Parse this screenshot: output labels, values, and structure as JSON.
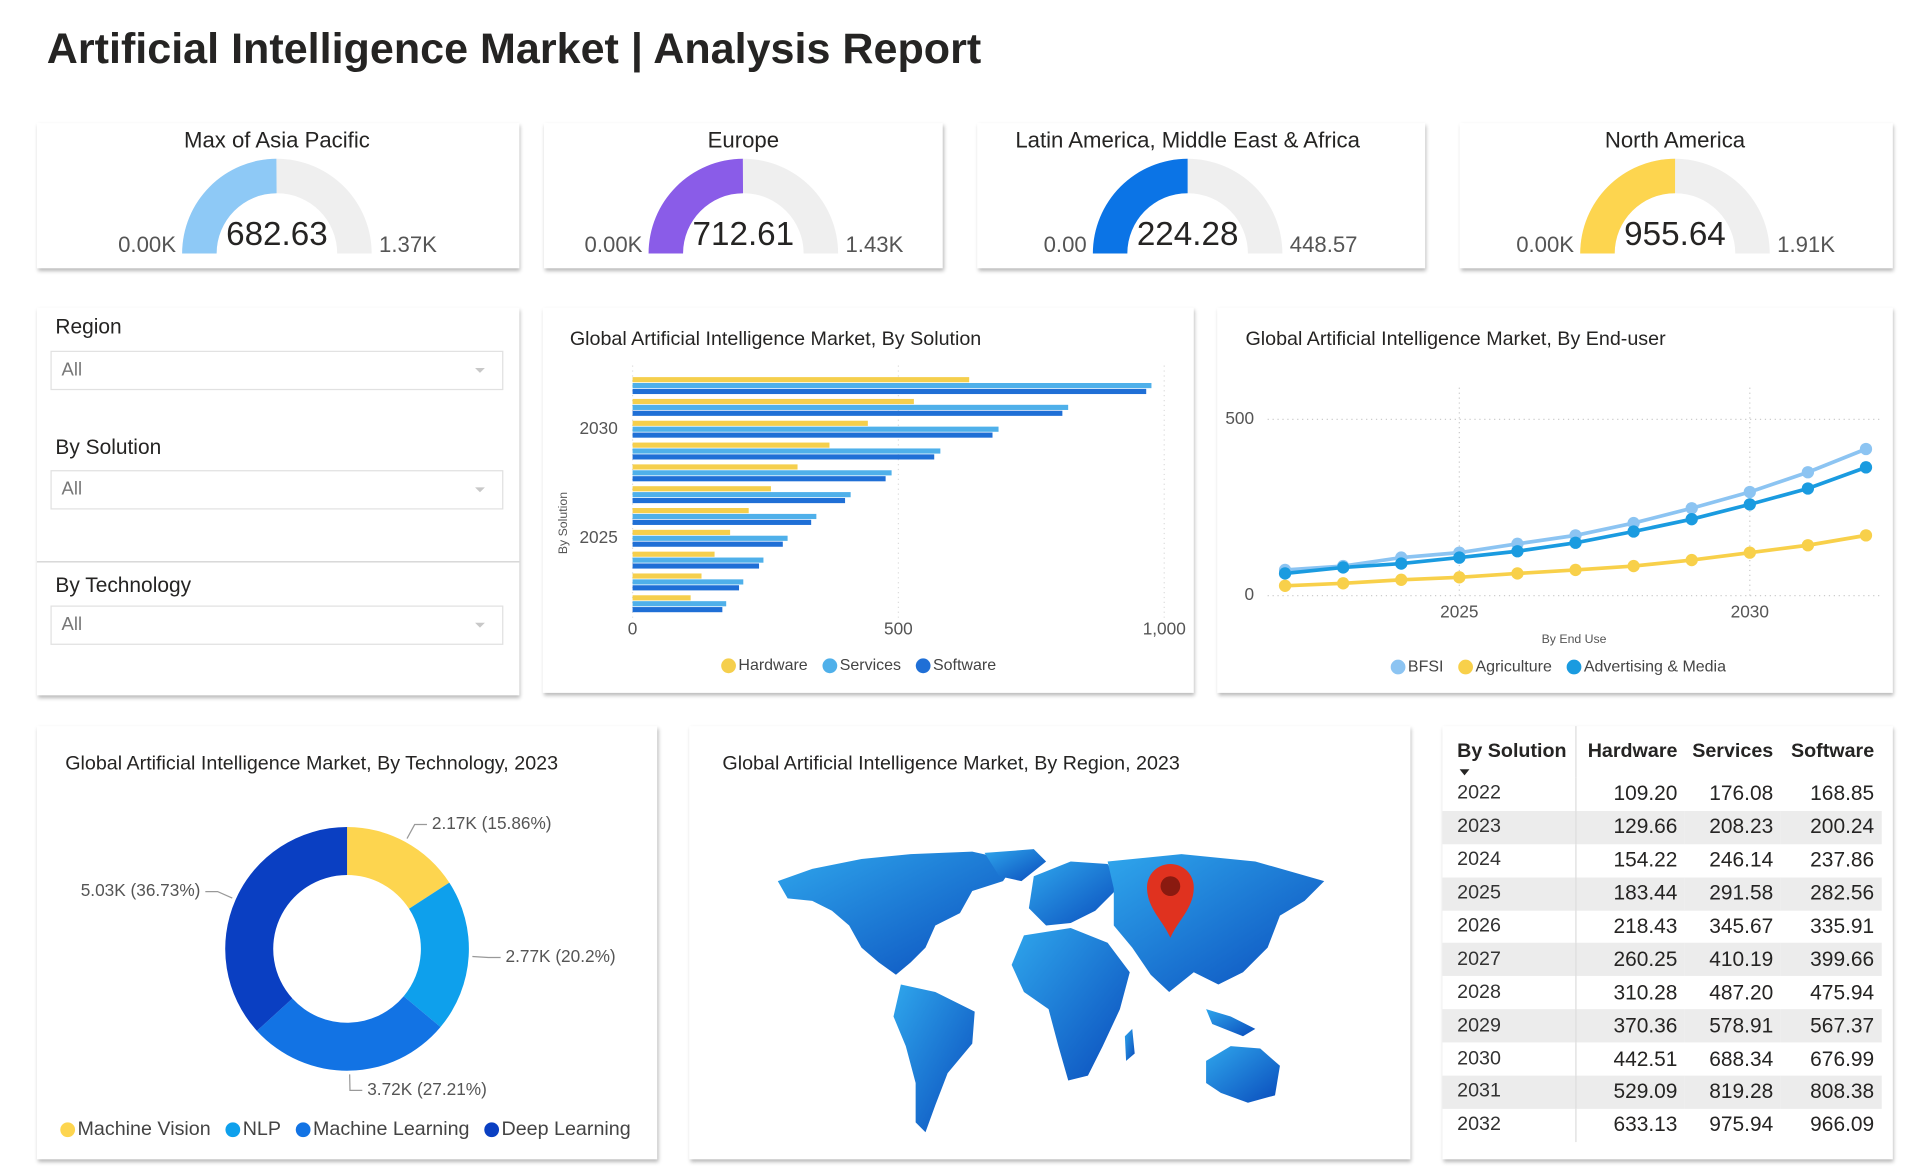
{
  "header": {
    "title": "Artificial Intelligence Market | Analysis Report"
  },
  "filters": [
    {
      "label": "Region",
      "value": "All"
    },
    {
      "label": "By Solution",
      "value": "All"
    },
    {
      "label": "By Technology",
      "value": "All"
    }
  ],
  "chart_data": [
    {
      "type": "gauge",
      "title": "Max of Asia Pacific",
      "value": 682.63,
      "ylim": [
        0,
        1370
      ],
      "yticks": [
        {
          "value": 0,
          "label": "0.00K"
        },
        {
          "value": 1370,
          "label": "1.37K"
        }
      ],
      "color": "#8ec9f6"
    },
    {
      "type": "gauge",
      "title": "Europe",
      "value": 712.61,
      "ylim": [
        0,
        1430
      ],
      "yticks": [
        {
          "value": 0,
          "label": "0.00K"
        },
        {
          "value": 1430,
          "label": "1.43K"
        }
      ],
      "color": "#8a5ce8"
    },
    {
      "type": "gauge",
      "title": "Latin America, Middle East & Africa",
      "value": 224.28,
      "ylim": [
        0,
        448.57
      ],
      "yticks": [
        {
          "value": 0,
          "label": "0.00"
        },
        448.57
      ],
      "color": "#0b74e6"
    },
    {
      "type": "gauge",
      "title": "North America",
      "value": 955.64,
      "ylim": [
        0,
        1910
      ],
      "yticks": [
        {
          "value": 0,
          "label": "0.00K"
        },
        {
          "value": 1910,
          "label": "1.91K"
        }
      ],
      "color": "#fdd54f"
    },
    {
      "type": "bar",
      "orientation": "horizontal",
      "title": "Global Artificial Intelligence Market, By Solution",
      "y_label": "By Solution",
      "categories": [
        null,
        null,
        "2030",
        null,
        null,
        null,
        null,
        "2025",
        null,
        null,
        null
      ],
      "series": [
        {
          "name": "Hardware",
          "color": "#f5cf4d",
          "values": [
            633.13,
            529.09,
            442.51,
            370.36,
            310.28,
            260.25,
            218.43,
            183.44,
            154.22,
            129.66,
            109.2
          ]
        },
        {
          "name": "Services",
          "color": "#4fb0ea",
          "values": [
            975.94,
            819.28,
            688.34,
            578.91,
            487.2,
            410.19,
            345.67,
            291.58,
            246.14,
            208.23,
            176.08
          ]
        },
        {
          "name": "Software",
          "color": "#1f6fd6",
          "values": [
            966.09,
            808.38,
            676.99,
            567.37,
            475.94,
            399.66,
            335.91,
            282.56,
            237.86,
            200.24,
            168.85
          ]
        }
      ],
      "xlim": [
        0,
        1000
      ],
      "xticks": [
        0,
        500,
        {
          "value": 1000,
          "label": "1,000"
        }
      ],
      "grid": true
    },
    {
      "type": "line",
      "title": "Global Artificial Intelligence Market, By End-user",
      "x_label": "By End Use",
      "x": [
        2022,
        2023,
        2024,
        2025,
        2026,
        2027,
        2028,
        2029,
        2030,
        2031,
        2032
      ],
      "series": [
        {
          "name": "BFSI",
          "color": "#8cc4f2",
          "values": [
            73,
            84,
            108,
            122,
            147,
            171,
            206,
            248,
            294,
            350,
            416
          ]
        },
        {
          "name": "Agriculture",
          "color": "#f8d04a",
          "values": [
            28,
            35,
            45,
            52,
            63,
            73,
            84,
            101,
            122,
            143,
            171
          ]
        },
        {
          "name": "Advertising & Media",
          "color": "#1a9be0",
          "values": [
            63,
            80,
            91,
            108,
            126,
            150,
            182,
            217,
            259,
            304,
            364
          ]
        }
      ],
      "xlim": [
        2021.7,
        2032.25
      ],
      "ylim": [
        0,
        590
      ],
      "xticks": [
        2025,
        2030
      ],
      "yticks": [
        0,
        500
      ],
      "grid": true
    },
    {
      "type": "donut",
      "title": "Global Artificial Intelligence Market, By Technology, 2023",
      "categories": [
        "Machine Vision",
        "NLP",
        "Machine Learning",
        "Deep Learning"
      ],
      "values": [
        2170,
        2770,
        3720,
        5030
      ],
      "value_labels": [
        "2.17K (15.86%)",
        "2.77K (20.2%)",
        "3.72K (27.21%)",
        "5.03K (36.73%)"
      ],
      "colors": [
        "#fdd54f",
        "#0ea0ec",
        "#1273e4",
        "#0a3fc2"
      ]
    }
  ],
  "map": {
    "title": "Global Artificial Intelligence Market, By Region, 2023"
  },
  "table": {
    "columns": [
      "By Solution",
      "Hardware",
      "Services",
      "Software"
    ],
    "rows": [
      [
        "2022",
        "109.20",
        "176.08",
        "168.85"
      ],
      [
        "2023",
        "129.66",
        "208.23",
        "200.24"
      ],
      [
        "2024",
        "154.22",
        "246.14",
        "237.86"
      ],
      [
        "2025",
        "183.44",
        "291.58",
        "282.56"
      ],
      [
        "2026",
        "218.43",
        "345.67",
        "335.91"
      ],
      [
        "2027",
        "260.25",
        "410.19",
        "399.66"
      ],
      [
        "2028",
        "310.28",
        "487.20",
        "475.94"
      ],
      [
        "2029",
        "370.36",
        "578.91",
        "567.37"
      ],
      [
        "2030",
        "442.51",
        "688.34",
        "676.99"
      ],
      [
        "2031",
        "529.09",
        "819.28",
        "808.38"
      ],
      [
        "2032",
        "633.13",
        "975.94",
        "966.09"
      ]
    ]
  }
}
